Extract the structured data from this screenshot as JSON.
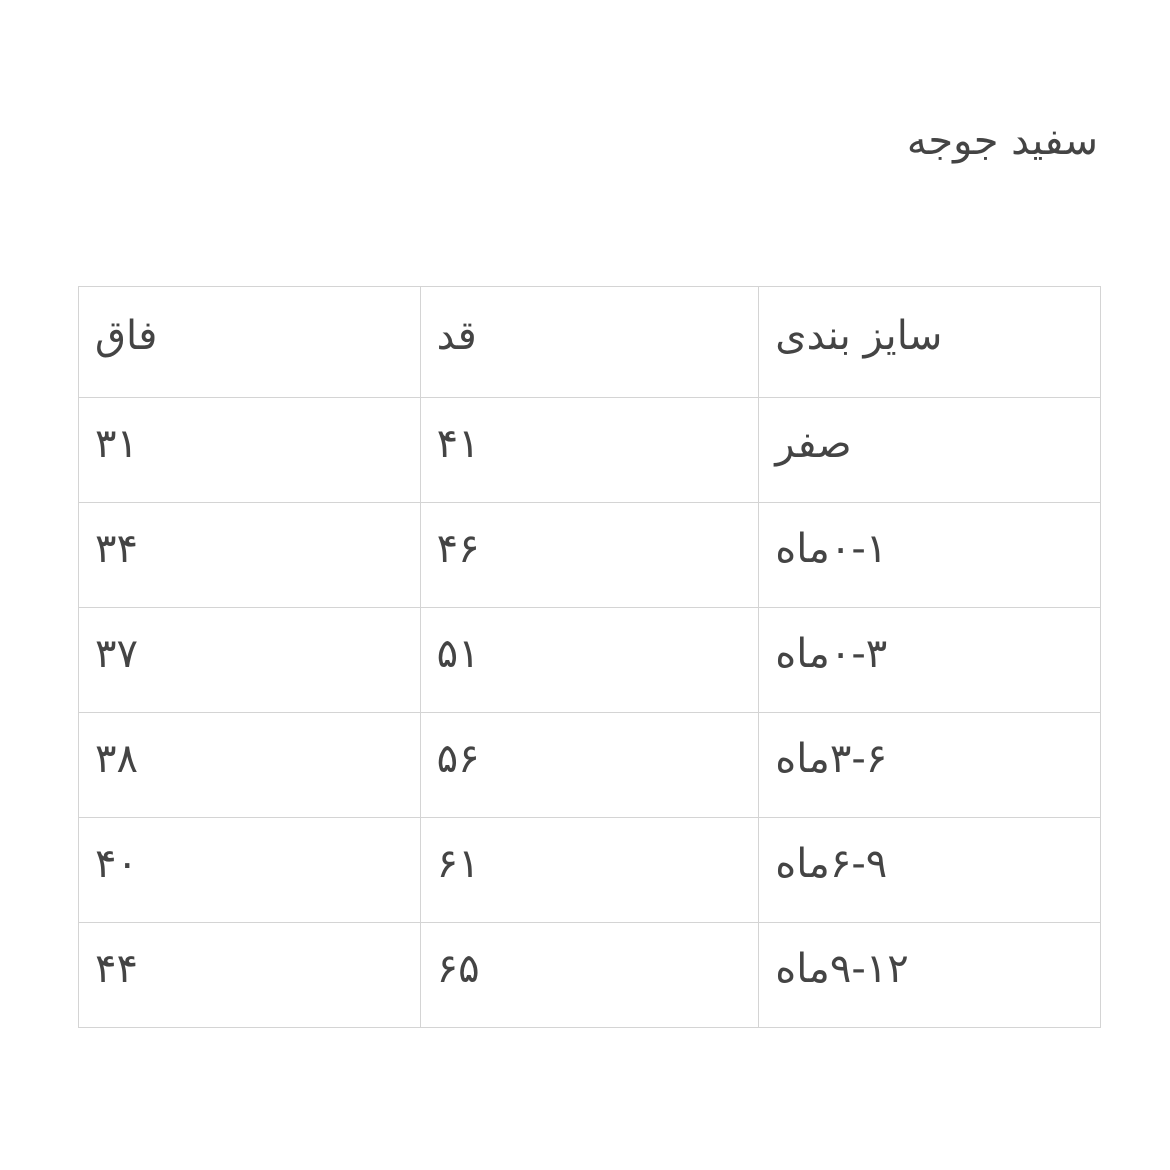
{
  "title": "سفید جوجه",
  "table": {
    "headers": [
      "سایز بندی",
      "قد",
      "فاق"
    ],
    "rows": [
      [
        "صفر",
        "۴۱",
        "۳۱"
      ],
      [
        "۰-۱ماه",
        "۴۶",
        "۳۴"
      ],
      [
        "۰-۳ماه",
        "۵۱",
        "۳۷"
      ],
      [
        "۳-۶ماه",
        "۵۶",
        "۳۸"
      ],
      [
        "۶-۹ماه",
        "۶۱",
        "۴۰"
      ],
      [
        "۹-۱۲ماه",
        "۶۵",
        "۴۴"
      ]
    ]
  }
}
